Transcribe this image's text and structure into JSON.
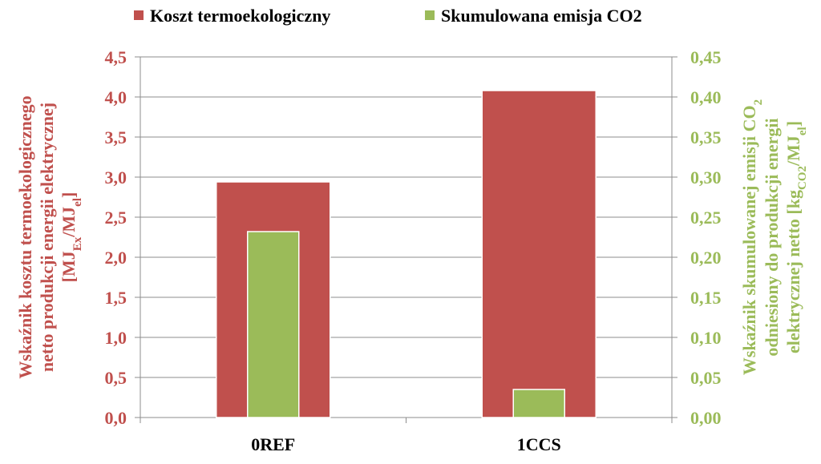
{
  "chart_data": {
    "type": "bar",
    "categories": [
      "0REF",
      "1CCS"
    ],
    "series": [
      {
        "name": "Koszt termoekologiczny",
        "axis": "left",
        "color": "#c0504d",
        "values": [
          2.94,
          4.08
        ]
      },
      {
        "name": "Skumulowana emisja CO2",
        "axis": "right",
        "color": "#9bbb59",
        "values": [
          0.232,
          0.035
        ]
      }
    ],
    "y_left": {
      "label_lines": [
        "Wskaźnik kosztu termoekologicznego",
        "netto produkcji energii elektrycznej",
        "[MJ{Ex}/MJ{el}]"
      ],
      "ylim": [
        0,
        4.5
      ],
      "ticks": [
        "0,0",
        "0,5",
        "1,0",
        "1,5",
        "2,0",
        "2,5",
        "3,0",
        "3,5",
        "4,0",
        "4,5"
      ],
      "color": "#c0504d"
    },
    "y_right": {
      "label_lines": [
        "Wskaźnik skumulowanej emisji CO{2}",
        "odniesiony do produkcji energii",
        "elektrycznej netto [kg{CO2}/MJ{el}]"
      ],
      "ylim": [
        0,
        0.45
      ],
      "ticks": [
        "0,00",
        "0,05",
        "0,10",
        "0,15",
        "0,20",
        "0,25",
        "0,30",
        "0,35",
        "0,40",
        "0,45"
      ],
      "color": "#9bbb59"
    },
    "grid": true,
    "legend_position": "top"
  }
}
